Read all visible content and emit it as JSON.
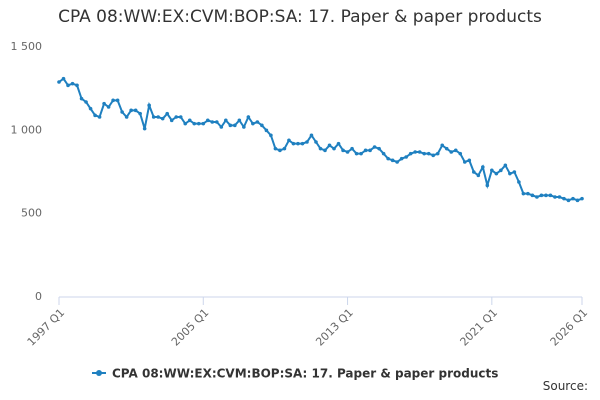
{
  "chart_data": {
    "type": "line",
    "title": "CPA 08:WW:EX:CVM:BOP:SA: 17. Paper & paper products",
    "categories": [
      "1997 Q1",
      null,
      null,
      null,
      null,
      null,
      null,
      null,
      null,
      null,
      null,
      null,
      null,
      null,
      null,
      null,
      null,
      null,
      null,
      null,
      null,
      null,
      null,
      null,
      null,
      null,
      null,
      null,
      null,
      null,
      null,
      null,
      "2005 Q1",
      null,
      null,
      null,
      null,
      null,
      null,
      null,
      null,
      null,
      null,
      null,
      null,
      null,
      null,
      null,
      null,
      null,
      null,
      null,
      null,
      null,
      null,
      null,
      null,
      null,
      null,
      null,
      null,
      null,
      null,
      null,
      "2013 Q1",
      null,
      null,
      null,
      null,
      null,
      null,
      null,
      null,
      null,
      null,
      null,
      null,
      null,
      null,
      null,
      null,
      null,
      null,
      null,
      null,
      null,
      null,
      null,
      null,
      null,
      null,
      null,
      null,
      null,
      null,
      null,
      "2021 Q1",
      null,
      null,
      null,
      null,
      null,
      null,
      null,
      null,
      null,
      null,
      null,
      null,
      null,
      null,
      null,
      null,
      null,
      null,
      null,
      "2026 Q1"
    ],
    "series": [
      {
        "name": "CPA 08:WW:EX:CVM:BOP:SA: 17. Paper & paper products",
        "color": "#1f80c0",
        "values": [
          1290,
          1310,
          1270,
          1280,
          1270,
          1190,
          1170,
          1130,
          1090,
          1080,
          1160,
          1140,
          1180,
          1180,
          1110,
          1080,
          1120,
          1120,
          1100,
          1010,
          1150,
          1080,
          1080,
          1070,
          1100,
          1060,
          1080,
          1080,
          1040,
          1060,
          1040,
          1040,
          1040,
          1060,
          1050,
          1050,
          1020,
          1060,
          1030,
          1030,
          1060,
          1020,
          1080,
          1040,
          1050,
          1030,
          1000,
          970,
          890,
          880,
          890,
          940,
          920,
          920,
          920,
          930,
          970,
          930,
          890,
          880,
          910,
          890,
          920,
          880,
          870,
          890,
          860,
          860,
          880,
          880,
          900,
          890,
          860,
          830,
          820,
          810,
          830,
          840,
          860,
          870,
          870,
          860,
          860,
          850,
          860,
          910,
          890,
          870,
          880,
          860,
          810,
          820,
          750,
          730,
          780,
          670,
          760,
          740,
          760,
          790,
          740,
          750,
          690,
          620,
          620,
          610,
          600,
          610,
          610,
          610,
          600,
          600,
          590,
          580,
          590,
          580,
          590
        ]
      }
    ],
    "ylim": [
      0,
      1500
    ],
    "yticks": [
      0,
      500,
      {
        "value": 1000,
        "label": "1 000"
      },
      {
        "value": 1500,
        "label": "1 500"
      }
    ],
    "grid": false,
    "legend": "bottom",
    "source": "Source:"
  }
}
